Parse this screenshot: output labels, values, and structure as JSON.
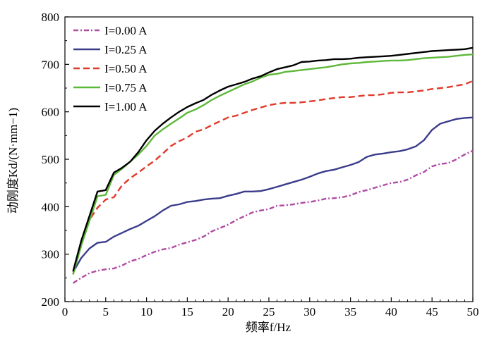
{
  "chart_data": {
    "type": "line",
    "xlabel": "频率f/Hz",
    "ylabel": "动刚度Kd/(N·mm−1)",
    "xlim": [
      0,
      50
    ],
    "ylim": [
      200,
      800
    ],
    "xticks": [
      "0",
      "5",
      "10",
      "15",
      "20",
      "25",
      "30",
      "35",
      "40",
      "45",
      "50"
    ],
    "yticks": [
      "200",
      "300",
      "400",
      "500",
      "600",
      "700",
      "800"
    ],
    "grid": false,
    "legend_position": "top-left",
    "x": [
      1,
      2,
      3,
      4,
      5,
      6,
      7,
      8,
      9,
      10,
      11,
      12,
      13,
      14,
      15,
      16,
      17,
      18,
      19,
      20,
      21,
      22,
      23,
      24,
      25,
      26,
      27,
      28,
      29,
      30,
      31,
      32,
      33,
      34,
      35,
      36,
      37,
      38,
      39,
      40,
      41,
      42,
      43,
      44,
      45,
      46,
      47,
      48,
      49,
      50
    ],
    "series": [
      {
        "name": "I=0.00 A",
        "color": "#b04aa4",
        "dash": "dashdot",
        "values": [
          239,
          250,
          260,
          265,
          268,
          270,
          276,
          285,
          290,
          298,
          305,
          310,
          313,
          320,
          325,
          330,
          337,
          348,
          355,
          362,
          372,
          380,
          388,
          392,
          395,
          402,
          403,
          405,
          408,
          410,
          413,
          417,
          418,
          420,
          424,
          431,
          435,
          440,
          445,
          450,
          452,
          457,
          466,
          473,
          485,
          490,
          492,
          500,
          510,
          518
        ]
      },
      {
        "name": "I=0.25 A",
        "color": "#3c3c8c",
        "dash": "solid",
        "values": [
          262,
          292,
          312,
          324,
          326,
          337,
          345,
          353,
          360,
          370,
          380,
          392,
          402,
          405,
          410,
          412,
          415,
          417,
          418,
          423,
          427,
          432,
          432,
          433,
          437,
          442,
          447,
          452,
          457,
          463,
          470,
          475,
          478,
          483,
          488,
          494,
          505,
          510,
          512,
          515,
          517,
          521,
          527,
          540,
          562,
          575,
          580,
          585,
          587,
          588
        ]
      },
      {
        "name": "I=0.50 A",
        "color": "#e03a2a",
        "dash": "dashed",
        "values": [
          258,
          322,
          372,
          398,
          415,
          420,
          445,
          460,
          472,
          485,
          497,
          512,
          528,
          538,
          546,
          558,
          563,
          572,
          580,
          588,
          592,
          598,
          604,
          609,
          614,
          617,
          619,
          619,
          620,
          622,
          624,
          627,
          629,
          631,
          631,
          633,
          635,
          635,
          637,
          640,
          641,
          641,
          643,
          645,
          648,
          650,
          652,
          655,
          658,
          665
        ]
      },
      {
        "name": "I=0.75 A",
        "color": "#5eb83a",
        "dash": "solid",
        "values": [
          257,
          318,
          370,
          422,
          425,
          467,
          480,
          495,
          510,
          528,
          550,
          563,
          575,
          586,
          598,
          605,
          614,
          625,
          634,
          642,
          650,
          658,
          664,
          672,
          678,
          680,
          684,
          686,
          688,
          690,
          692,
          694,
          697,
          700,
          702,
          703,
          705,
          706,
          707,
          708,
          708,
          709,
          711,
          713,
          714,
          715,
          716,
          718,
          720,
          721
        ]
      },
      {
        "name": "I=1.00 A",
        "color": "#000000",
        "dash": "solid",
        "values": [
          264,
          328,
          380,
          432,
          435,
          472,
          482,
          495,
          515,
          540,
          560,
          575,
          588,
          600,
          610,
          618,
          625,
          636,
          645,
          653,
          658,
          663,
          670,
          675,
          683,
          690,
          694,
          698,
          705,
          706,
          708,
          709,
          711,
          711,
          712,
          714,
          715,
          716,
          717,
          718,
          720,
          722,
          724,
          726,
          728,
          729,
          730,
          731,
          732,
          735
        ]
      }
    ]
  }
}
